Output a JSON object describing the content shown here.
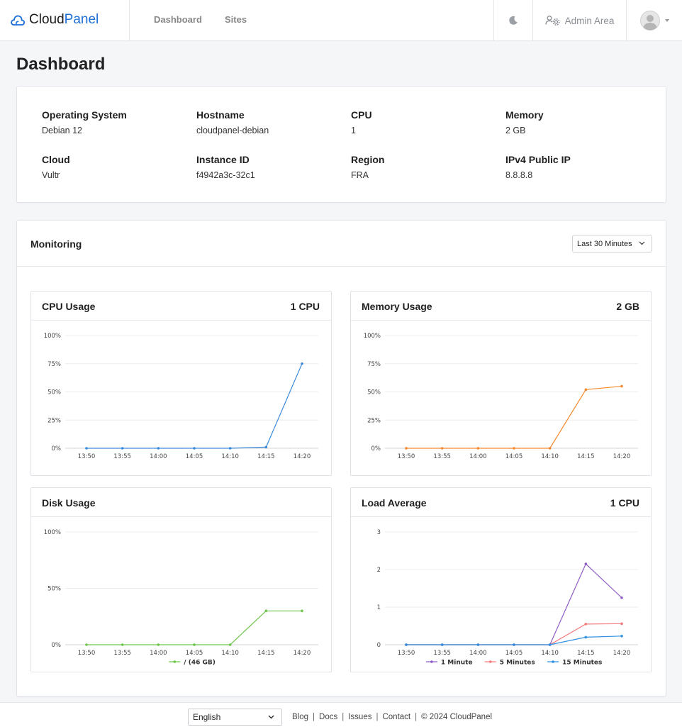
{
  "brand": {
    "name_part1": "Cloud",
    "name_part2": "Panel",
    "accent": "#1d6fd6"
  },
  "nav": {
    "items": [
      {
        "label": "Dashboard"
      },
      {
        "label": "Sites"
      }
    ]
  },
  "header": {
    "theme_icon": "moon-icon",
    "admin_label": "Admin Area",
    "admin_icon": "users-gear-icon",
    "user_icon": "avatar-icon"
  },
  "page": {
    "title": "Dashboard"
  },
  "server_info": {
    "items": [
      {
        "label": "Operating System",
        "value": "Debian 12"
      },
      {
        "label": "Hostname",
        "value": "cloudpanel-debian"
      },
      {
        "label": "CPU",
        "value": "1"
      },
      {
        "label": "Memory",
        "value": "2 GB"
      },
      {
        "label": "Cloud",
        "value": "Vultr"
      },
      {
        "label": "Instance ID",
        "value": "f4942a3c-32c1"
      },
      {
        "label": "Region",
        "value": "FRA"
      },
      {
        "label": "IPv4 Public IP",
        "value": "8.8.8.8"
      }
    ]
  },
  "monitoring": {
    "title": "Monitoring",
    "range": {
      "selected": "Last 30 Minutes"
    }
  },
  "chart_data": [
    {
      "id": "cpu",
      "type": "line",
      "title": "CPU Usage",
      "meta": "1 CPU",
      "x": [
        "13:50",
        "13:55",
        "14:00",
        "14:05",
        "14:10",
        "14:15",
        "14:20"
      ],
      "y_ticks": [
        0,
        25,
        50,
        75,
        100
      ],
      "y_tick_labels": [
        "0%",
        "25%",
        "50%",
        "75%",
        "100%"
      ],
      "ylim": [
        0,
        100
      ],
      "grid": true,
      "legend": false,
      "series": [
        {
          "color": "#3b8ad9",
          "values": [
            0,
            0,
            0,
            0,
            0,
            1,
            75
          ]
        }
      ]
    },
    {
      "id": "memory",
      "type": "line",
      "title": "Memory Usage",
      "meta": "2 GB",
      "x": [
        "13:50",
        "13:55",
        "14:00",
        "14:05",
        "14:10",
        "14:15",
        "14:20"
      ],
      "y_ticks": [
        0,
        25,
        50,
        75,
        100
      ],
      "y_tick_labels": [
        "0%",
        "25%",
        "50%",
        "75%",
        "100%"
      ],
      "ylim": [
        0,
        100
      ],
      "grid": true,
      "legend": false,
      "series": [
        {
          "color": "#f5892d",
          "values": [
            0,
            0,
            0,
            0,
            0,
            52,
            55
          ]
        }
      ]
    },
    {
      "id": "disk",
      "type": "line",
      "title": "Disk Usage",
      "meta": "",
      "x": [
        "13:50",
        "13:55",
        "14:00",
        "14:05",
        "14:10",
        "14:15",
        "14:20"
      ],
      "y_ticks": [
        0,
        50,
        100
      ],
      "y_tick_labels": [
        "0%",
        "50%",
        "100%"
      ],
      "ylim": [
        0,
        100
      ],
      "grid": true,
      "legend": "bottom",
      "series": [
        {
          "name": "/ (46 GB)",
          "color": "#6cc54a",
          "values": [
            0,
            0,
            0,
            0,
            0,
            30,
            30
          ]
        }
      ]
    },
    {
      "id": "load",
      "type": "line",
      "title": "Load Average",
      "meta": "1 CPU",
      "x": [
        "13:50",
        "13:55",
        "14:00",
        "14:05",
        "14:10",
        "14:15",
        "14:20"
      ],
      "y_ticks": [
        0,
        1,
        2,
        3
      ],
      "y_tick_labels": [
        "0",
        "1",
        "2",
        "3"
      ],
      "ylim": [
        0,
        3
      ],
      "grid": true,
      "legend": "bottom",
      "series": [
        {
          "name": "1 Minute",
          "color": "#8e5cc4",
          "values": [
            0,
            0,
            0,
            0,
            0,
            2.15,
            1.25
          ]
        },
        {
          "name": "5 Minutes",
          "color": "#f27a7d",
          "values": [
            0,
            0,
            0,
            0,
            0,
            0.55,
            0.56
          ]
        },
        {
          "name": "15 Minutes",
          "color": "#2f8fe0",
          "values": [
            0,
            0,
            0,
            0,
            0,
            0.2,
            0.23
          ]
        }
      ]
    }
  ],
  "footer": {
    "language": "English",
    "links": [
      "Blog",
      "Docs",
      "Issues",
      "Contact"
    ],
    "copyright": "© 2024  CloudPanel"
  }
}
